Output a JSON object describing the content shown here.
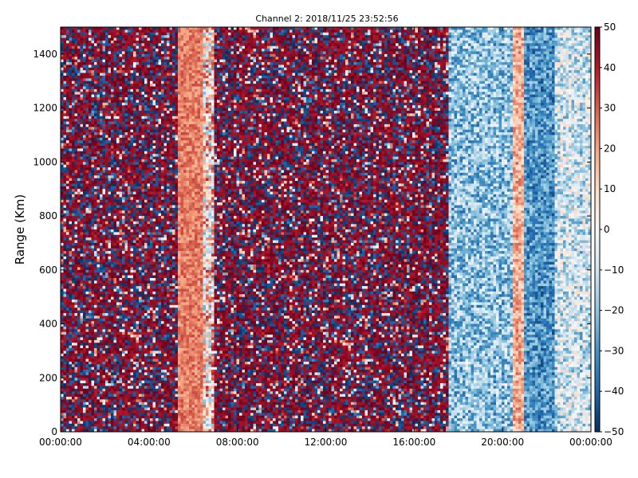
{
  "chart_data": {
    "type": "heatmap",
    "title": "Channel 2: 2018/11/25 23:52:56",
    "xlabel": "",
    "ylabel": "Range (Km)",
    "x_tick_labels": [
      "00:00:00",
      "04:00:00",
      "08:00:00",
      "12:00:00",
      "16:00:00",
      "20:00:00",
      "00:00:00"
    ],
    "x_tick_hours": [
      0,
      4,
      8,
      12,
      16,
      20,
      24
    ],
    "xlim_hours": [
      0,
      24
    ],
    "y_ticks": [
      0,
      200,
      400,
      600,
      800,
      1000,
      1200,
      1400
    ],
    "ylim": [
      0,
      1500
    ],
    "colorbar": {
      "ticks": [
        50,
        40,
        30,
        20,
        10,
        0,
        -10,
        -20,
        -30,
        -40,
        -50
      ],
      "tick_labels": [
        "50",
        "40",
        "30",
        "20",
        "10",
        "0",
        "−10",
        "−20",
        "−30",
        "−40",
        "−50"
      ],
      "range": [
        -50,
        50
      ],
      "colormap": "RdBu_r"
    },
    "grid": false,
    "bands": [
      {
        "start_hour": 0.0,
        "end_hour": 5.3,
        "value": 48,
        "spread": 90
      },
      {
        "start_hour": 5.3,
        "end_hour": 6.4,
        "value": 25,
        "spread": 8
      },
      {
        "start_hour": 6.4,
        "end_hour": 7.0,
        "value": 8,
        "spread": 30
      },
      {
        "start_hour": 7.0,
        "end_hour": 17.6,
        "value": 45,
        "spread": 90
      },
      {
        "start_hour": 17.6,
        "end_hour": 20.5,
        "value": -20,
        "spread": 18
      },
      {
        "start_hour": 20.5,
        "end_hour": 21.0,
        "value": 18,
        "spread": 12
      },
      {
        "start_hour": 21.0,
        "end_hour": 22.3,
        "value": -30,
        "spread": 14
      },
      {
        "start_hour": 22.3,
        "end_hour": 24.0,
        "value": -10,
        "spread": 20
      }
    ]
  }
}
